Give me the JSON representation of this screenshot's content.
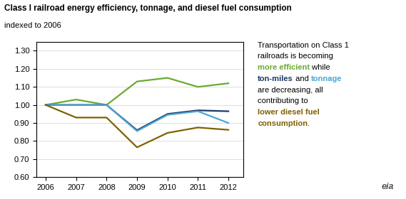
{
  "chart_data": {
    "type": "line",
    "title": "Class I railroad energy efficiency, tonnage, and diesel fuel consumption",
    "subtitle": "indexed to 2006",
    "x": [
      2006,
      2007,
      2008,
      2009,
      2010,
      2011,
      2012
    ],
    "series": [
      {
        "color": "#6aab2e",
        "values": [
          1.0,
          1.03,
          1.0,
          1.13,
          1.15,
          1.1,
          1.12
        ]
      },
      {
        "color": "#1f3864",
        "values": [
          1.0,
          1.0,
          1.0,
          0.86,
          0.95,
          0.97,
          0.965
        ]
      },
      {
        "color": "#4da6d4",
        "values": [
          1.0,
          1.0,
          1.0,
          0.855,
          0.945,
          0.965,
          0.9
        ]
      },
      {
        "color": "#806000",
        "values": [
          1.0,
          0.93,
          0.93,
          0.765,
          0.845,
          0.875,
          0.862
        ]
      }
    ],
    "xlim": [
      2005.7,
      2012.5
    ],
    "xticks": [
      2006,
      2007,
      2008,
      2009,
      2010,
      2011,
      2012
    ],
    "ylim": [
      0.6,
      1.35
    ],
    "yticks": [
      {
        "value": 0.6,
        "label": "0.60"
      },
      {
        "value": 0.7,
        "label": "0.70"
      },
      {
        "value": 0.8,
        "label": "0.80"
      },
      {
        "value": 0.9,
        "label": "0.90"
      },
      {
        "value": 1.0,
        "label": "1.00"
      },
      {
        "value": 1.1,
        "label": "1.10"
      },
      {
        "value": 1.2,
        "label": "1.20"
      },
      {
        "value": 1.3,
        "label": "1.30"
      }
    ],
    "grid": "y",
    "annotations": [
      {
        "lines": [
          [
            {
              "text": "Transportation on Class 1"
            }
          ],
          [
            {
              "text": "railroads is becoming"
            }
          ],
          [
            {
              "text": "more efficient",
              "color": "#6aab2e"
            },
            {
              "text": " while"
            }
          ],
          [
            {
              "text": "ton-miles",
              "color": "#1f3864"
            },
            {
              "text": " and "
            },
            {
              "text": "tonnage",
              "color": "#4da6d4"
            }
          ],
          [
            {
              "text": "are decreasing, all"
            }
          ],
          [
            {
              "text": "contributing to"
            }
          ],
          [
            {
              "text": "lower diesel fuel",
              "color": "#806000"
            }
          ],
          [
            {
              "text": "consumption",
              "color": "#806000"
            },
            {
              "text": "."
            }
          ]
        ]
      },
      {
        "text": "eia"
      }
    ]
  }
}
